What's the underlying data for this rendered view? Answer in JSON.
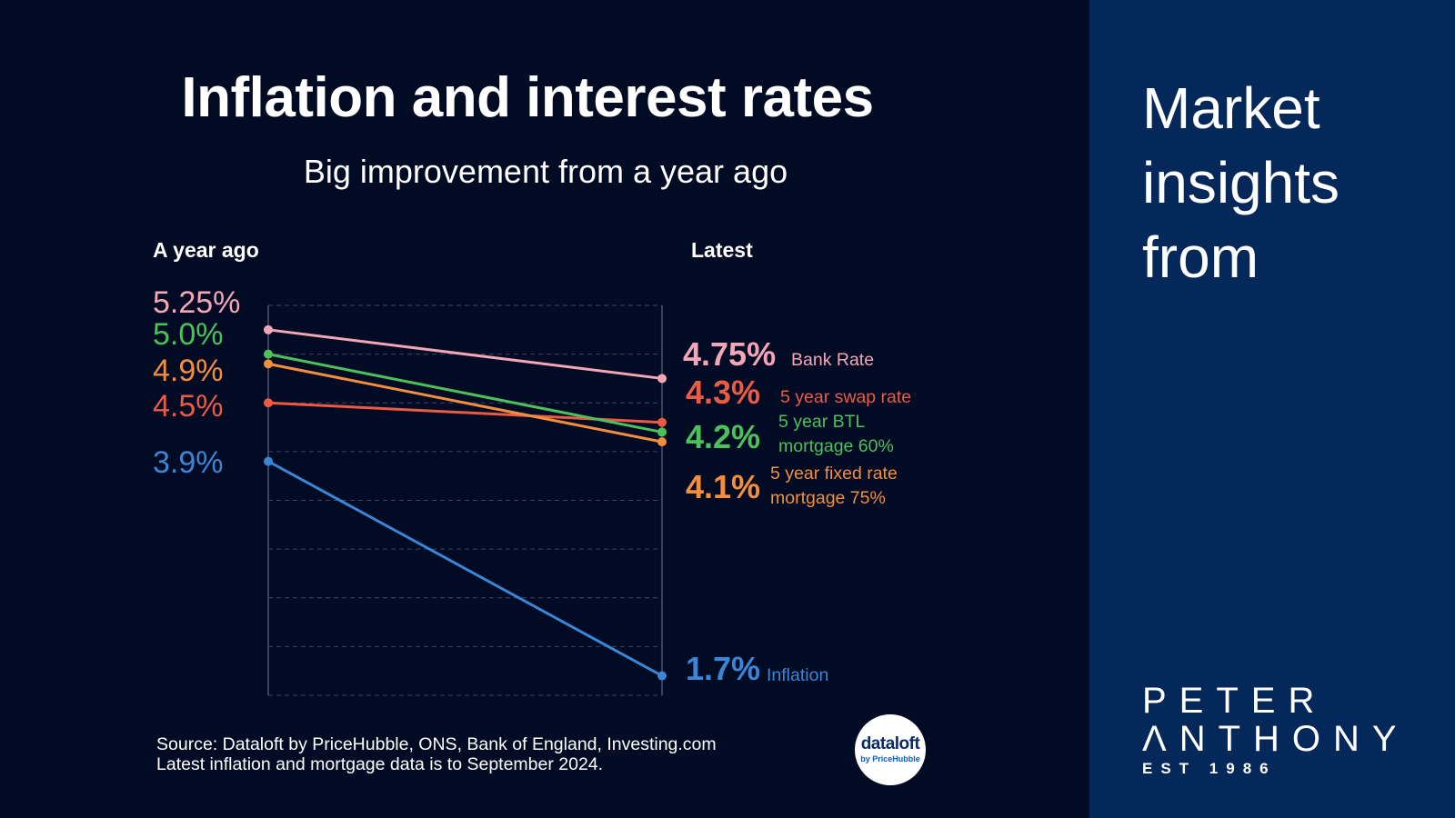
{
  "header": {
    "title": "Inflation and interest rates",
    "subtitle": "Big improvement from a year ago"
  },
  "columns": {
    "left": "A year ago",
    "right": "Latest"
  },
  "footer": {
    "source_line1": "Source: Dataloft by PriceHubble, ONS, Bank of England, Investing.com",
    "source_line2": "Latest inflation and mortgage data is to September 2024."
  },
  "dataloft_logo": {
    "main": "dataloft",
    "sub": "by PriceHubble"
  },
  "sidebar": {
    "line1": "Market",
    "line2": "insights",
    "line3": "from",
    "brand_line1": "PETER",
    "brand_line2": "ΛNTHONY",
    "brand_line3": "EST 1986",
    "background_color": "#04285a"
  },
  "chart_data": {
    "type": "line",
    "x": [
      "A year ago",
      "Latest"
    ],
    "ylim": [
      1.5,
      5.5
    ],
    "grid": true,
    "series": [
      {
        "name": "Bank Rate",
        "start": 5.25,
        "end": 4.75,
        "start_label": "5.25%",
        "end_label": "4.75%",
        "color": "#f4a6b7"
      },
      {
        "name": "5 year swap rate",
        "start": 4.5,
        "end": 4.3,
        "start_label": "4.5%",
        "end_label": "4.3%",
        "color": "#ea5a45"
      },
      {
        "name": "5 year BTL mortgage 60%",
        "start": 5.0,
        "end": 4.2,
        "start_label": "5.0%",
        "end_label": "4.2%",
        "color": "#4cc05a"
      },
      {
        "name": "5 year fixed rate mortgage 75%",
        "start": 4.9,
        "end": 4.1,
        "start_label": "4.9%",
        "end_label": "4.1%",
        "color": "#f38e3e"
      },
      {
        "name": "Inflation",
        "start": 3.9,
        "end": 1.7,
        "start_label": "3.9%",
        "end_label": "1.7%",
        "color": "#3a85d6"
      }
    ]
  }
}
